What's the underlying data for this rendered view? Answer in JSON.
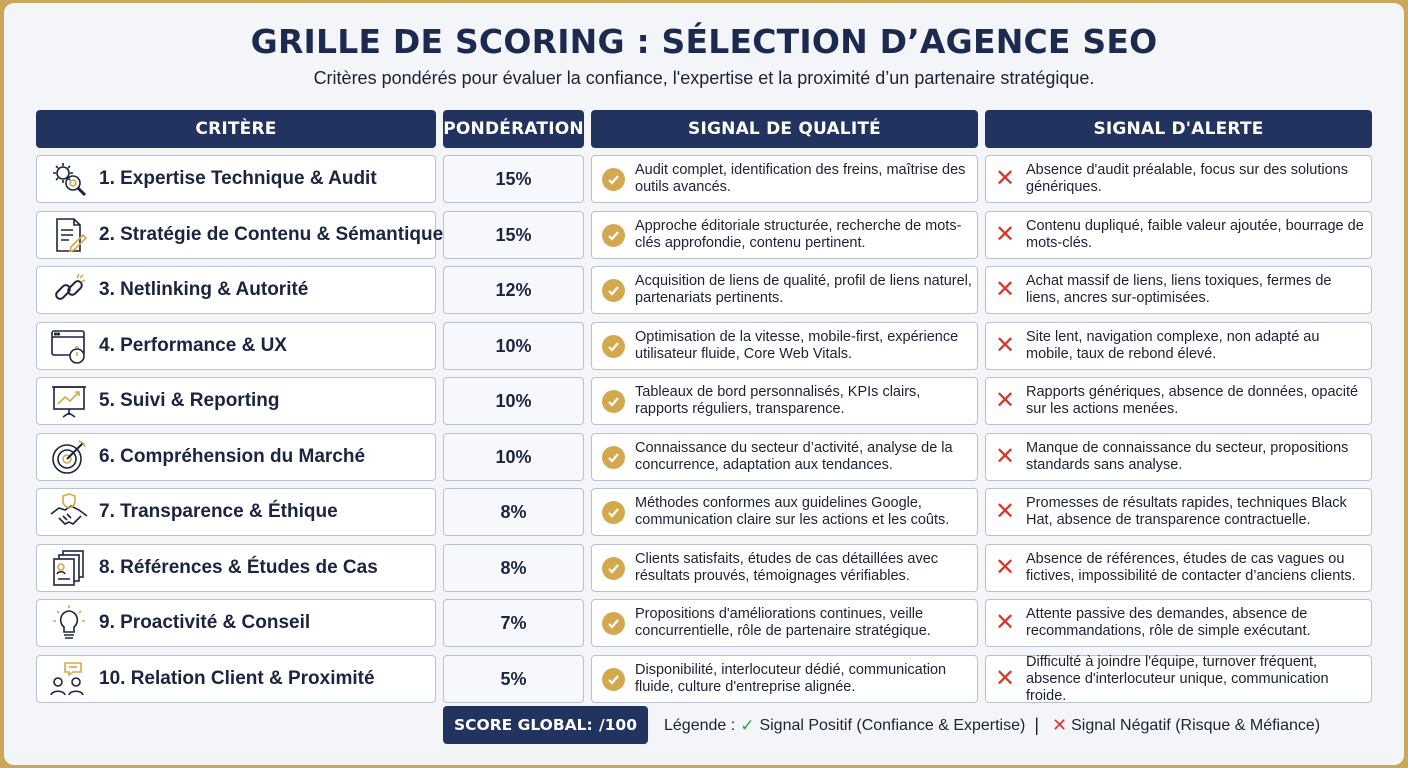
{
  "title": "GRILLE DE SCORING : SÉLECTION D’AGENCE SEO",
  "subtitle": "Critères pondérés pour évaluer la confiance, l'expertise et la proximité d’un partenaire stratégique.",
  "headers": {
    "criterion": "CRITÈRE",
    "weight": "PONDÉRATION",
    "quality": "SIGNAL DE QUALITÉ",
    "alert": "SIGNAL D'ALERTE"
  },
  "rows": [
    {
      "icon": "gear-magnifier-icon",
      "label": "1. Expertise Technique & Audit",
      "weight": "15%",
      "quality": "Audit complet, identification des freins, maîtrise des outils avancés.",
      "alert": "Absence d'audit préalable, focus sur des solutions génériques."
    },
    {
      "icon": "document-pen-icon",
      "label": "2. Stratégie de Contenu & Sémantique",
      "weight": "15%",
      "quality": "Approche éditoriale structurée, recherche de mots-clés approfondie, contenu pertinent.",
      "alert": "Contenu dupliqué, faible valeur ajoutée, bourrage de mots-clés."
    },
    {
      "icon": "chain-link-icon",
      "label": "3. Netlinking & Autorité",
      "weight": "12%",
      "quality": "Acquisition de liens de qualité, profil de liens naturel, partenariats pertinents.",
      "alert": "Achat massif de liens, liens toxiques, fermes de liens, ancres sur-optimisées."
    },
    {
      "icon": "browser-stopwatch-icon",
      "label": "4. Performance & UX",
      "weight": "10%",
      "quality": "Optimisation de la vitesse, mobile-first, expérience utilisateur fluide, Core Web Vitals.",
      "alert": "Site lent, navigation complexe, non adapté au mobile, taux de rebond élevé."
    },
    {
      "icon": "presentation-chart-icon",
      "label": "5. Suivi & Reporting",
      "weight": "10%",
      "quality": "Tableaux de bord personnalisés, KPIs clairs, rapports réguliers, transparence.",
      "alert": "Rapports génériques, absence de données, opacité sur les actions menées."
    },
    {
      "icon": "target-arrow-icon",
      "label": "6. Compréhension du Marché",
      "weight": "10%",
      "quality": "Connaissance du secteur d’activité, analyse de la concurrence, adaptation aux tendances.",
      "alert": "Manque de connaissance du secteur, propositions standards sans analyse."
    },
    {
      "icon": "handshake-shield-icon",
      "label": "7. Transparence & Éthique",
      "weight": "8%",
      "quality": "Méthodes conformes aux guidelines Google, communication claire sur les actions et les coûts.",
      "alert": "Promesses de résultats rapides, techniques Black Hat, absence de transparence contractuelle."
    },
    {
      "icon": "case-files-icon",
      "label": "8. Références & Études de Cas",
      "weight": "8%",
      "quality": "Clients satisfaits, études de cas détaillées avec résultats prouvés, témoignages vérifiables.",
      "alert": "Absence de références, études de cas vagues ou fictives, impossibilité de contacter d’anciens clients."
    },
    {
      "icon": "lightbulb-icon",
      "label": "9. Proactivité & Conseil",
      "weight": "7%",
      "quality": "Propositions d'améliorations continues, veille concurrentielle, rôle de partenaire stratégique.",
      "alert": "Attente passive des demandes, absence de recommandations, rôle de simple exécutant."
    },
    {
      "icon": "people-chat-icon",
      "label": "10. Relation Client & Proximité",
      "weight": "5%",
      "quality": "Disponibilité, interlocuteur dédié, communication fluide, culture d'entreprise alignée.",
      "alert": "Difficulté à joindre l'équipe, turnover fréquent, absence d'interlocuteur unique, communication froide."
    }
  ],
  "score": {
    "label": "SCORE GLOBAL:",
    "value": "/100"
  },
  "legend": {
    "prefix": "Légende :",
    "positive": "Signal Positif (Confiance & Expertise)",
    "separator": "|",
    "negative": "Signal Négatif (Risque & Méfiance)"
  },
  "colors": {
    "header": "#22335f",
    "check": "#d3a94f",
    "cross": "#d33a2c",
    "legend_check": "#2ea046",
    "border": "#c9a65a"
  }
}
